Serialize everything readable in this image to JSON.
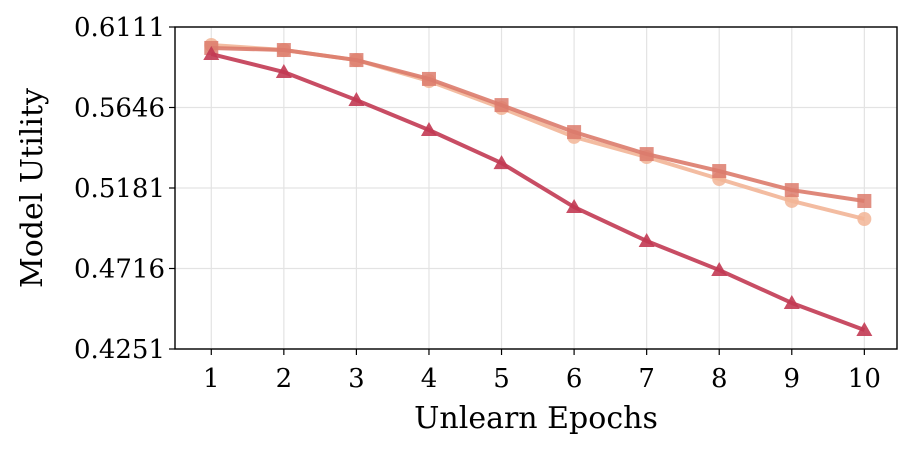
{
  "chart_data": {
    "type": "line",
    "x_label": "Unlearn Epochs",
    "y_label": "Model Utility",
    "x": [
      1,
      2,
      3,
      4,
      5,
      6,
      7,
      8,
      9,
      10
    ],
    "series": [
      {
        "color": "#f2b597",
        "marker": "circle",
        "values": [
          0.6007,
          0.5978,
          0.592,
          0.5799,
          0.5643,
          0.5476,
          0.536,
          0.5233,
          0.5106,
          0.5002
        ]
      },
      {
        "color": "#dc7b6c",
        "marker": "square",
        "values": [
          0.599,
          0.5978,
          0.592,
          0.5811,
          0.566,
          0.5504,
          0.5377,
          0.5279,
          0.5169,
          0.5106
        ]
      },
      {
        "color": "#c23a53",
        "marker": "triangle",
        "values": [
          0.5955,
          0.5851,
          0.5689,
          0.5516,
          0.5325,
          0.5071,
          0.4875,
          0.4707,
          0.4517,
          0.4361
        ]
      }
    ],
    "xlim": [
      0.5,
      10.45
    ],
    "xticks": [
      1,
      2,
      3,
      4,
      5,
      6,
      7,
      8,
      9,
      10
    ],
    "ylim": [
      0.4251,
      0.6111
    ],
    "yticks": [
      0.4251,
      0.4716,
      0.5181,
      0.5646,
      0.6111
    ],
    "grid": true
  }
}
